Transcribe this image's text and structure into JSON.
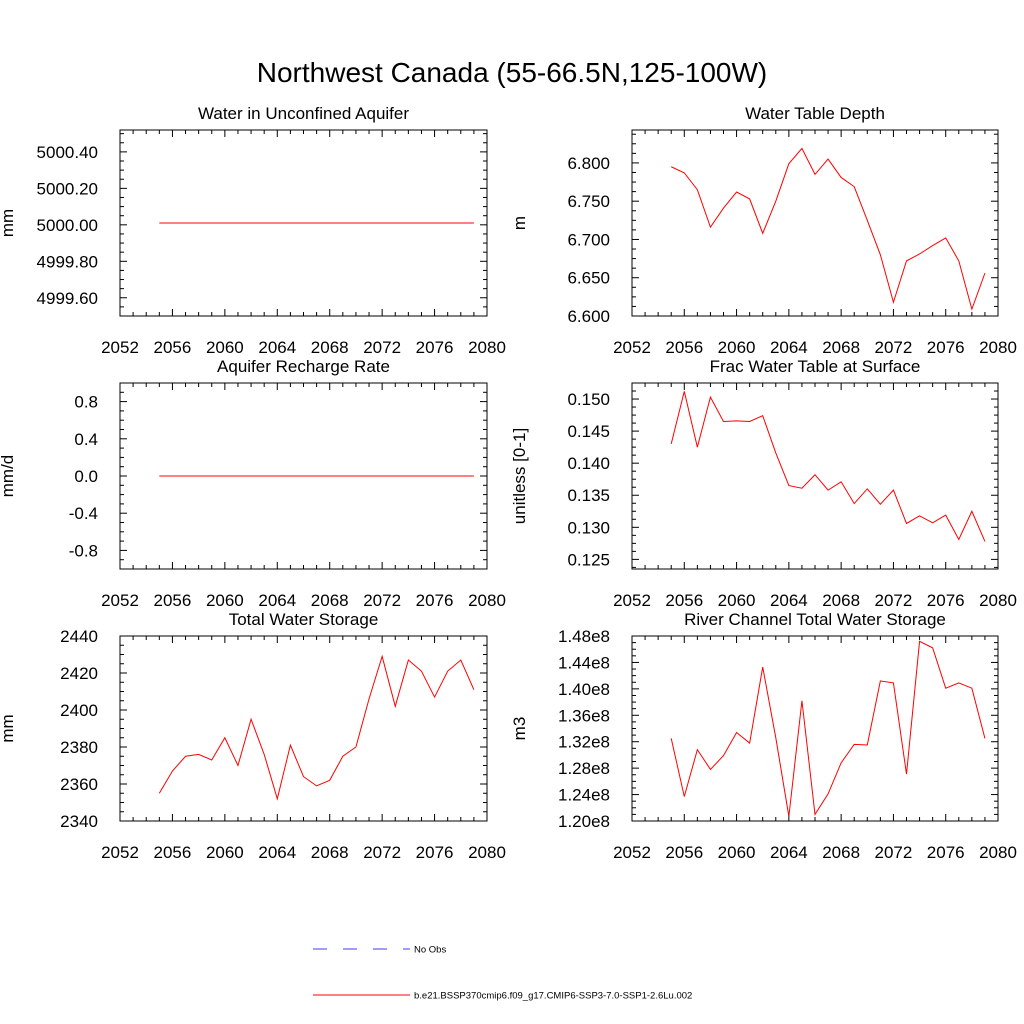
{
  "figure": {
    "title": "Northwest Canada (55-66.5N,125-100W)"
  },
  "colors": {
    "model_line": "#ff0000",
    "obs_line": "#3c3cff",
    "axis": "#000000"
  },
  "legend": {
    "obs_label": "No Obs",
    "model_label": "b.e21.BSSP370cmip6.f09_g17.CMIP6-SSP3-7.0-SSP1-2.6Lu.002"
  },
  "chart_data": [
    {
      "type": "line",
      "title": "Water in Unconfined Aquifer",
      "xlabel": "",
      "ylabel": "mm",
      "xlim": [
        2052,
        2080
      ],
      "ylim": [
        4999.5,
        5000.52
      ],
      "xticks": [
        "2052",
        "2056",
        "2060",
        "2064",
        "2068",
        "2072",
        "2076",
        "2080"
      ],
      "yticks": [
        "4999.60",
        "4999.80",
        "5000.00",
        "5000.20",
        "5000.40"
      ],
      "x": [
        2055,
        2056,
        2057,
        2058,
        2059,
        2060,
        2061,
        2062,
        2063,
        2064,
        2065,
        2066,
        2067,
        2068,
        2069,
        2070,
        2071,
        2072,
        2073,
        2074,
        2075,
        2076,
        2077,
        2078,
        2079
      ],
      "series": [
        {
          "values": [
            5000.01,
            5000.01,
            5000.01,
            5000.01,
            5000.01,
            5000.01,
            5000.01,
            5000.01,
            5000.01,
            5000.01,
            5000.01,
            5000.01,
            5000.01,
            5000.01,
            5000.01,
            5000.01,
            5000.01,
            5000.01,
            5000.01,
            5000.01,
            5000.01,
            5000.01,
            5000.01,
            5000.01,
            5000.01
          ]
        }
      ]
    },
    {
      "type": "line",
      "title": "Water Table Depth",
      "xlabel": "",
      "ylabel": "m",
      "xlim": [
        2052,
        2080
      ],
      "ylim": [
        6.6,
        6.843
      ],
      "xticks": [
        "2052",
        "2056",
        "2060",
        "2064",
        "2068",
        "2072",
        "2076",
        "2080"
      ],
      "yticks": [
        "6.600",
        "6.650",
        "6.700",
        "6.750",
        "6.800"
      ],
      "x": [
        2055,
        2056,
        2057,
        2058,
        2059,
        2060,
        2061,
        2062,
        2063,
        2064,
        2065,
        2066,
        2067,
        2068,
        2069,
        2070,
        2071,
        2072,
        2073,
        2074,
        2075,
        2076,
        2077,
        2078,
        2079
      ],
      "series": [
        {
          "values": [
            6.795,
            6.787,
            6.765,
            6.716,
            6.741,
            6.762,
            6.753,
            6.708,
            6.75,
            6.799,
            6.819,
            6.785,
            6.805,
            6.781,
            6.769,
            6.725,
            6.68,
            6.618,
            6.672,
            6.681,
            6.692,
            6.702,
            6.672,
            6.609,
            6.656
          ]
        }
      ]
    },
    {
      "type": "line",
      "title": "Aquifer Recharge Rate",
      "xlabel": "",
      "ylabel": "mm/d",
      "xlim": [
        2052,
        2080
      ],
      "ylim": [
        -1.0,
        1.0
      ],
      "xticks": [
        "2052",
        "2056",
        "2060",
        "2064",
        "2068",
        "2072",
        "2076",
        "2080"
      ],
      "yticks": [
        "-0.8",
        "-0.4",
        "0.0",
        "0.4",
        "0.8"
      ],
      "x": [
        2055,
        2056,
        2057,
        2058,
        2059,
        2060,
        2061,
        2062,
        2063,
        2064,
        2065,
        2066,
        2067,
        2068,
        2069,
        2070,
        2071,
        2072,
        2073,
        2074,
        2075,
        2076,
        2077,
        2078,
        2079
      ],
      "series": [
        {
          "values": [
            0.0,
            0.0,
            0.0,
            0.0,
            0.0,
            0.0,
            0.0,
            0.0,
            0.0,
            0.0,
            0.0,
            0.0,
            0.0,
            0.0,
            0.0,
            0.0,
            0.0,
            0.0,
            0.0,
            0.0,
            0.0,
            0.0,
            0.0,
            0.0,
            0.0
          ]
        }
      ]
    },
    {
      "type": "line",
      "title": "Frac Water Table at Surface",
      "xlabel": "",
      "ylabel": "unitless [0-1]",
      "xlim": [
        2052,
        2080
      ],
      "ylim": [
        0.1235,
        0.1525
      ],
      "xticks": [
        "2052",
        "2056",
        "2060",
        "2064",
        "2068",
        "2072",
        "2076",
        "2080"
      ],
      "yticks": [
        "0.125",
        "0.130",
        "0.135",
        "0.140",
        "0.145",
        "0.150"
      ],
      "x": [
        2055,
        2056,
        2057,
        2058,
        2059,
        2060,
        2061,
        2062,
        2063,
        2064,
        2065,
        2066,
        2067,
        2068,
        2069,
        2070,
        2071,
        2072,
        2073,
        2074,
        2075,
        2076,
        2077,
        2078,
        2079
      ],
      "series": [
        {
          "values": [
            0.143,
            0.1512,
            0.1425,
            0.1503,
            0.1465,
            0.1466,
            0.1465,
            0.1474,
            0.1416,
            0.1365,
            0.1361,
            0.1382,
            0.1358,
            0.1371,
            0.1337,
            0.136,
            0.1336,
            0.1358,
            0.1306,
            0.1318,
            0.1307,
            0.1319,
            0.1281,
            0.1325,
            0.1278
          ]
        }
      ]
    },
    {
      "type": "line",
      "title": "Total Water Storage",
      "xlabel": "",
      "ylabel": "mm",
      "xlim": [
        2052,
        2080
      ],
      "ylim": [
        2340,
        2440
      ],
      "xticks": [
        "2052",
        "2056",
        "2060",
        "2064",
        "2068",
        "2072",
        "2076",
        "2080"
      ],
      "yticks": [
        "2340",
        "2360",
        "2380",
        "2400",
        "2420",
        "2440"
      ],
      "x": [
        2055,
        2056,
        2057,
        2058,
        2059,
        2060,
        2061,
        2062,
        2063,
        2064,
        2065,
        2066,
        2067,
        2068,
        2069,
        2070,
        2071,
        2072,
        2073,
        2074,
        2075,
        2076,
        2077,
        2078,
        2079
      ],
      "series": [
        {
          "values": [
            2355,
            2367,
            2375,
            2376,
            2373,
            2385,
            2370,
            2395,
            2376,
            2352,
            2381,
            2364,
            2359,
            2362,
            2375,
            2380,
            2406,
            2429,
            2402,
            2427,
            2421,
            2407,
            2421,
            2427,
            2411
          ]
        }
      ]
    },
    {
      "type": "line",
      "title": "River Channel Total Water Storage",
      "xlabel": "",
      "ylabel": "m3",
      "xlim": [
        2052,
        2080
      ],
      "ylim": [
        120000000,
        148000000
      ],
      "xticks": [
        "2052",
        "2056",
        "2060",
        "2064",
        "2068",
        "2072",
        "2076",
        "2080"
      ],
      "yticks": [
        "1.20e8",
        "1.24e8",
        "1.28e8",
        "1.32e8",
        "1.36e8",
        "1.40e8",
        "1.44e8",
        "1.48e8"
      ],
      "x": [
        2055,
        2056,
        2057,
        2058,
        2059,
        2060,
        2061,
        2062,
        2063,
        2064,
        2065,
        2066,
        2067,
        2068,
        2069,
        2070,
        2071,
        2072,
        2073,
        2074,
        2075,
        2076,
        2077,
        2078,
        2079
      ],
      "series": [
        {
          "values": [
            132500000,
            123700000,
            130800000,
            127800000,
            129900000,
            133400000,
            131800000,
            143300000,
            132600000,
            120700000,
            138200000,
            121000000,
            124100000,
            128800000,
            131600000,
            131500000,
            141200000,
            140900000,
            127100000,
            147200000,
            146200000,
            140100000,
            140900000,
            140100000,
            132500000
          ]
        }
      ]
    }
  ]
}
